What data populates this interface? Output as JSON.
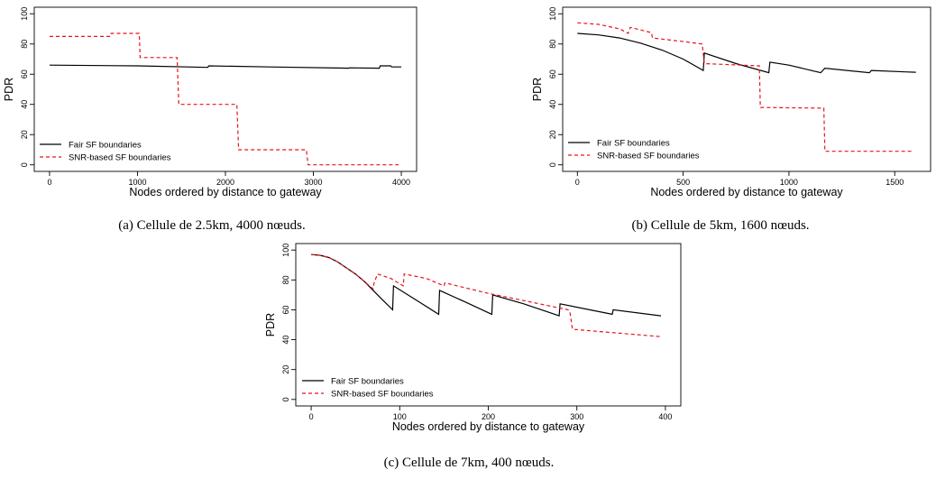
{
  "colors": {
    "fair": "#000000",
    "snr": "#e8141c"
  },
  "chart_data": [
    {
      "type": "line",
      "caption": "(a) Cellule de 2.5km, 4000 nœuds.",
      "xlabel": "Nodes ordered by distance to gateway",
      "ylabel": "PDR",
      "xlim": [
        0,
        4000
      ],
      "ylim": [
        0,
        100
      ],
      "xticks": [
        0,
        1000,
        2000,
        3000,
        4000
      ],
      "yticks": [
        0,
        20,
        40,
        60,
        80,
        100
      ],
      "legend_position": "bottom-left",
      "series": [
        {
          "name": "Fair SF boundaries",
          "style": "solid",
          "x": [
            0,
            1000,
            1800,
            1810,
            2500,
            3400,
            3410,
            3750,
            3760,
            3880,
            3890,
            4000
          ],
          "y": [
            66,
            65.5,
            64.5,
            65.5,
            64.8,
            64,
            64.2,
            64,
            65.5,
            65.5,
            64.8,
            64.8
          ]
        },
        {
          "name": "SNR-based SF boundaries",
          "style": "dashed",
          "step": true,
          "x": [
            0,
            690,
            700,
            1020,
            1030,
            1450,
            1470,
            2130,
            2150,
            2920,
            2940,
            3970
          ],
          "y": [
            85,
            85,
            87,
            87,
            71,
            71,
            40,
            40,
            10,
            10,
            0,
            0
          ]
        }
      ]
    },
    {
      "type": "line",
      "caption": "(b) Cellule de 5km, 1600 nœuds.",
      "xlabel": "Nodes ordered by distance to gateway",
      "ylabel": "PDR",
      "xlim": [
        0,
        1600
      ],
      "ylim": [
        0,
        100
      ],
      "xticks": [
        0,
        500,
        1000,
        1500
      ],
      "yticks": [
        0,
        20,
        40,
        60,
        80,
        100
      ],
      "legend_position": "bottom-left",
      "series": [
        {
          "name": "Fair SF boundaries",
          "style": "solid",
          "x": [
            0,
            100,
            200,
            300,
            400,
            500,
            595,
            600,
            750,
            905,
            910,
            1000,
            1150,
            1170,
            1380,
            1390,
            1550,
            1600
          ],
          "y": [
            87,
            86,
            84,
            80.5,
            76,
            70,
            62.5,
            74,
            67,
            61,
            68,
            66,
            61,
            64,
            61,
            62.5,
            61.5,
            61.3
          ]
        },
        {
          "name": "SNR-based SF boundaries",
          "style": "dashed",
          "step": true,
          "x": [
            0,
            100,
            200,
            240,
            250,
            350,
            355,
            475,
            480,
            590,
            600,
            860,
            865,
            1165,
            1170,
            1590
          ],
          "y": [
            94,
            93,
            90,
            87,
            91,
            87.5,
            84,
            82,
            82,
            80,
            67,
            65.5,
            38,
            37.5,
            9,
            9
          ]
        }
      ]
    },
    {
      "type": "line",
      "caption": "(c) Cellule de 7km, 400 nœuds.",
      "xlabel": "Nodes ordered by distance to gateway",
      "ylabel": "PDR",
      "xlim": [
        0,
        400
      ],
      "ylim": [
        0,
        100
      ],
      "xticks": [
        0,
        100,
        200,
        300,
        400
      ],
      "yticks": [
        0,
        20,
        40,
        60,
        80,
        100
      ],
      "legend_position": "bottom-left",
      "series": [
        {
          "name": "Fair SF boundaries",
          "style": "solid",
          "x": [
            0,
            10,
            20,
            30,
            40,
            50,
            60,
            70,
            80,
            92,
            93,
            120,
            144,
            145,
            175,
            204,
            205,
            240,
            280,
            281,
            340,
            341,
            395
          ],
          "y": [
            97,
            96.5,
            95,
            92,
            88,
            84,
            79,
            73,
            67,
            60,
            76,
            66,
            57,
            73,
            65,
            57,
            70,
            64,
            56,
            64,
            57,
            60,
            56
          ]
        },
        {
          "name": "SNR-based SF boundaries",
          "style": "dashed",
          "x": [
            0,
            10,
            20,
            30,
            40,
            50,
            60,
            70,
            71,
            75,
            90,
            104,
            105,
            130,
            150,
            151,
            200,
            250,
            290,
            292,
            295,
            395
          ],
          "y": [
            97,
            96.5,
            95,
            92,
            88,
            84,
            79,
            74,
            78,
            84,
            81,
            76,
            84,
            81,
            76,
            78,
            71,
            65,
            60,
            59,
            47,
            42
          ]
        }
      ]
    }
  ]
}
